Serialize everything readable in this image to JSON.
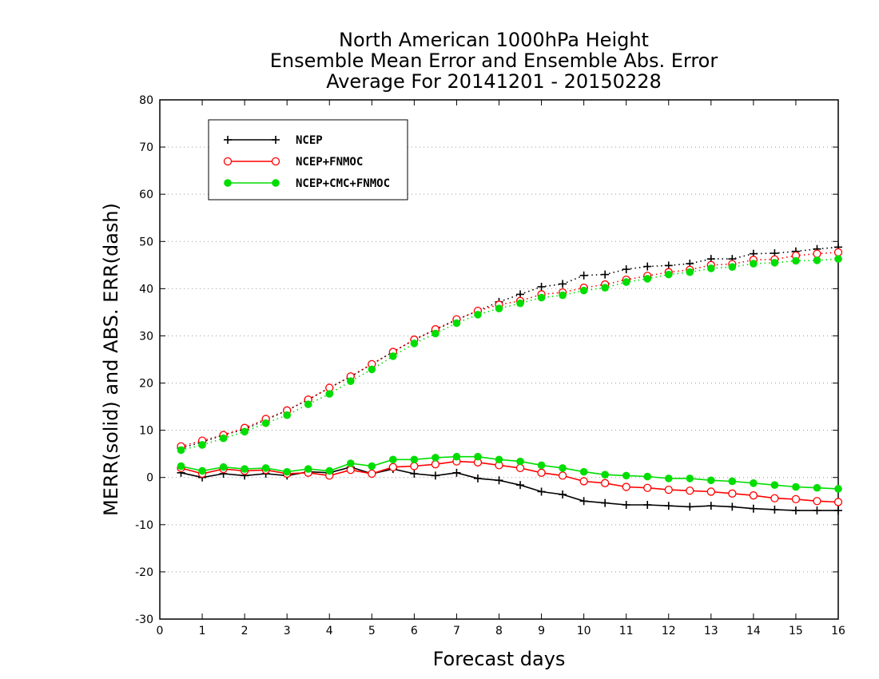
{
  "chart_data": {
    "type": "line",
    "title_lines": [
      "North American 1000hPa Height",
      "Ensemble Mean Error and Ensemble Abs. Error",
      "Average For 20141201 - 20150228"
    ],
    "xlabel": "Forecast days",
    "ylabel": "MERR(solid) and ABS. ERR(dash)",
    "xlim": [
      0,
      16
    ],
    "ylim": [
      -30,
      80
    ],
    "xticks": [
      0,
      1,
      2,
      3,
      4,
      5,
      6,
      7,
      8,
      9,
      10,
      11,
      12,
      13,
      14,
      15,
      16
    ],
    "yticks": [
      -30,
      -20,
      -10,
      0,
      10,
      20,
      30,
      40,
      50,
      60,
      70,
      80
    ],
    "grid": "horizontal dotted",
    "legend_position": "top-left",
    "x": [
      0.5,
      1,
      1.5,
      2,
      2.5,
      3,
      3.5,
      4,
      4.5,
      5,
      5.5,
      6,
      6.5,
      7,
      7.5,
      8,
      8.5,
      9,
      9.5,
      10,
      10.5,
      11,
      11.5,
      12,
      12.5,
      13,
      13.5,
      14,
      14.5,
      15,
      15.5,
      16
    ],
    "series": [
      {
        "name": "NCEP",
        "color": "#000000",
        "marker": "plus",
        "merr": [
          1.0,
          0.0,
          0.8,
          0.4,
          0.8,
          0.4,
          1.2,
          1.0,
          2.2,
          0.8,
          1.8,
          0.8,
          0.4,
          1.0,
          -0.2,
          -0.6,
          -1.6,
          -3.0,
          -3.6,
          -5.0,
          -5.4,
          -5.8,
          -5.8,
          -6.0,
          -6.2,
          -6.0,
          -6.2,
          -6.6,
          -6.8,
          -7.0,
          -7.0,
          -7.0
        ],
        "abs_err": [
          6.2,
          7.5,
          9.0,
          10.2,
          12.2,
          14.2,
          16.5,
          19.0,
          21.4,
          24.0,
          26.6,
          29.2,
          31.3,
          33.4,
          35.3,
          37.2,
          38.8,
          40.4,
          41.0,
          42.8,
          43.0,
          44.1,
          44.7,
          44.9,
          45.3,
          46.3,
          46.3,
          47.4,
          47.5,
          47.9,
          48.4,
          48.8
        ]
      },
      {
        "name": "NCEP+FNMOC",
        "color": "#ff0000",
        "marker": "open-circle",
        "merr": [
          2.0,
          0.8,
          1.8,
          1.4,
          1.6,
          0.8,
          1.0,
          0.4,
          1.6,
          0.8,
          2.2,
          2.4,
          2.8,
          3.4,
          3.2,
          2.6,
          2.0,
          1.0,
          0.4,
          -0.8,
          -1.2,
          -2.0,
          -2.2,
          -2.6,
          -2.8,
          -3.0,
          -3.4,
          -3.8,
          -4.4,
          -4.6,
          -5.0,
          -5.2
        ],
        "abs_err": [
          6.6,
          7.8,
          9.0,
          10.5,
          12.4,
          14.2,
          16.5,
          19.0,
          21.4,
          24.0,
          26.6,
          29.2,
          31.4,
          33.5,
          35.3,
          36.6,
          37.4,
          38.8,
          39.2,
          40.2,
          40.9,
          41.9,
          42.7,
          43.5,
          44.0,
          45.0,
          45.2,
          46.1,
          46.2,
          47.0,
          47.4,
          47.7
        ]
      },
      {
        "name": "NCEP+CMC+FNMOC",
        "color": "#00dd00",
        "marker": "filled-circle",
        "merr": [
          2.4,
          1.4,
          2.2,
          1.8,
          2.0,
          1.2,
          1.8,
          1.4,
          3.0,
          2.4,
          3.8,
          3.8,
          4.2,
          4.4,
          4.4,
          3.8,
          3.4,
          2.6,
          2.0,
          1.2,
          0.6,
          0.4,
          0.2,
          -0.2,
          -0.2,
          -0.6,
          -0.8,
          -1.2,
          -1.6,
          -2.0,
          -2.2,
          -2.4
        ],
        "abs_err": [
          5.8,
          6.9,
          8.3,
          9.7,
          11.5,
          13.2,
          15.5,
          17.7,
          20.4,
          22.9,
          25.7,
          28.4,
          30.5,
          32.7,
          34.5,
          35.8,
          36.9,
          38.1,
          38.6,
          39.6,
          40.2,
          41.4,
          42.1,
          43.0,
          43.5,
          44.3,
          44.6,
          45.3,
          45.5,
          45.9,
          46.0,
          46.3
        ]
      }
    ]
  }
}
